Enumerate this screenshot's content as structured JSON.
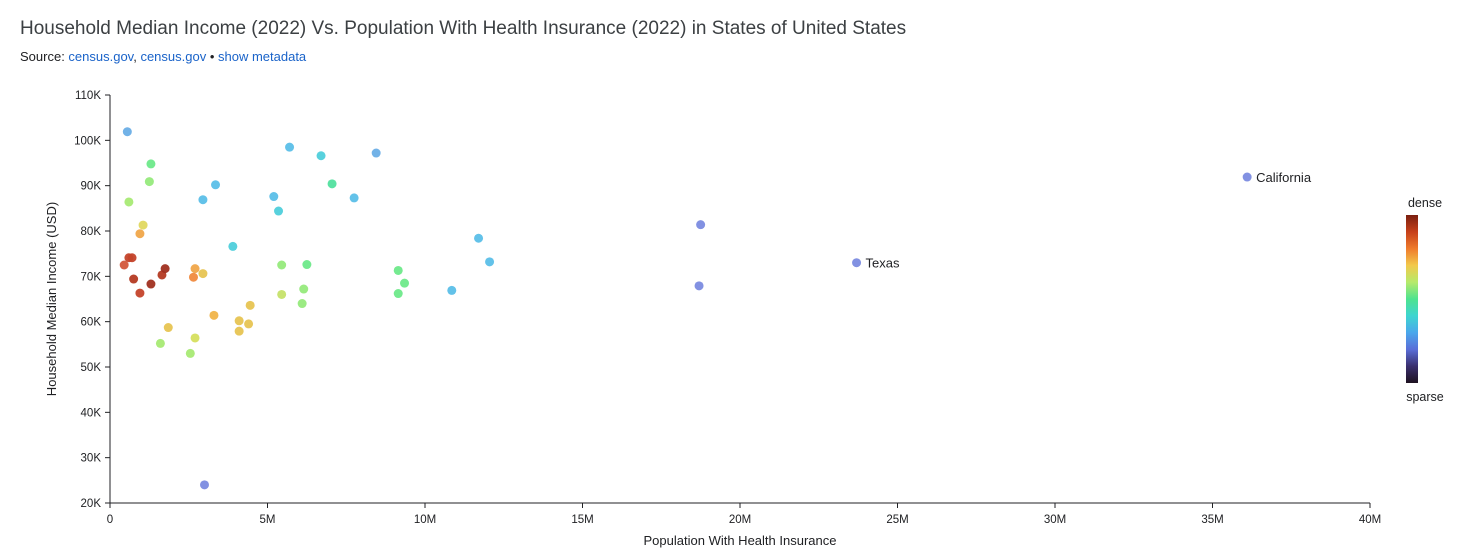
{
  "header": {
    "title": "Household Median Income (2022) Vs. Population With Health Insurance (2022) in States of United States",
    "source_prefix": "Source: ",
    "source_links": [
      "census.gov",
      "census.gov"
    ],
    "separator": ", ",
    "bullet": " • ",
    "metadata_link": "show metadata"
  },
  "chart_data": {
    "type": "scatter",
    "xlabel": "Population With Health Insurance",
    "ylabel": "Household Median Income (USD)",
    "xlim": [
      0,
      40000000
    ],
    "ylim": [
      20000,
      110000
    ],
    "x_ticks": [
      0,
      5000000,
      10000000,
      15000000,
      20000000,
      25000000,
      30000000,
      35000000,
      40000000
    ],
    "x_tick_labels": [
      "0",
      "5M",
      "10M",
      "15M",
      "20M",
      "25M",
      "30M",
      "35M",
      "40M"
    ],
    "y_ticks": [
      20000,
      30000,
      40000,
      50000,
      60000,
      70000,
      80000,
      90000,
      100000,
      110000
    ],
    "y_tick_labels": [
      "20K",
      "30K",
      "40K",
      "50K",
      "60K",
      "70K",
      "80K",
      "90K",
      "100K",
      "110K"
    ],
    "grid": false,
    "legend": {
      "position": "right",
      "top_label": "dense",
      "bottom_label": "sparse",
      "colors": [
        "#7a1f10",
        "#c6401a",
        "#ef7b2c",
        "#f2c94c",
        "#b6ea6b",
        "#4ee38f",
        "#3ed5d0",
        "#4aa7ec",
        "#5a6ed8",
        "#3a2f6e",
        "#1e1220"
      ]
    },
    "points": [
      {
        "x": 36100000,
        "y": 91900,
        "label": "California",
        "color": "#7b8be0"
      },
      {
        "x": 23700000,
        "y": 73000,
        "label": "Texas",
        "color": "#7b8be0"
      },
      {
        "x": 18750000,
        "y": 81400,
        "color": "#7b8be0"
      },
      {
        "x": 18700000,
        "y": 67900,
        "color": "#7b8be0"
      },
      {
        "x": 12050000,
        "y": 73200,
        "color": "#5bbfe8"
      },
      {
        "x": 11700000,
        "y": 78400,
        "color": "#5bbfe8"
      },
      {
        "x": 10850000,
        "y": 66900,
        "color": "#5bbfe8"
      },
      {
        "x": 8450000,
        "y": 97200,
        "color": "#6aaee6"
      },
      {
        "x": 7750000,
        "y": 87300,
        "color": "#5bbfe8"
      },
      {
        "x": 6700000,
        "y": 96600,
        "color": "#4fcfdb"
      },
      {
        "x": 5700000,
        "y": 98500,
        "color": "#5bbfe8"
      },
      {
        "x": 5200000,
        "y": 87600,
        "color": "#5bbfe8"
      },
      {
        "x": 5350000,
        "y": 84400,
        "color": "#4fcfdb"
      },
      {
        "x": 7050000,
        "y": 90400,
        "color": "#52e09f"
      },
      {
        "x": 9150000,
        "y": 71300,
        "color": "#6ee98a"
      },
      {
        "x": 9350000,
        "y": 68500,
        "color": "#6ee98a"
      },
      {
        "x": 9150000,
        "y": 66200,
        "color": "#6ee98a"
      },
      {
        "x": 6250000,
        "y": 72600,
        "color": "#6ee98a"
      },
      {
        "x": 6150000,
        "y": 67200,
        "color": "#96ea7c"
      },
      {
        "x": 6100000,
        "y": 64000,
        "color": "#96ea7c"
      },
      {
        "x": 5450000,
        "y": 72500,
        "color": "#96ea7c"
      },
      {
        "x": 5450000,
        "y": 66000,
        "color": "#c6e26a"
      },
      {
        "x": 3900000,
        "y": 76600,
        "color": "#4fcfdb"
      },
      {
        "x": 3350000,
        "y": 90200,
        "color": "#5bbfe8"
      },
      {
        "x": 2950000,
        "y": 86900,
        "color": "#5bbfe8"
      },
      {
        "x": 3000000,
        "y": 24000,
        "color": "#7b8be0"
      },
      {
        "x": 550000,
        "y": 101900,
        "color": "#6aaee6"
      },
      {
        "x": 1300000,
        "y": 94800,
        "color": "#6ee98a"
      },
      {
        "x": 1250000,
        "y": 90900,
        "color": "#96ea7c"
      },
      {
        "x": 600000,
        "y": 86400,
        "color": "#a8ea74"
      },
      {
        "x": 1050000,
        "y": 81300,
        "color": "#e0d860"
      },
      {
        "x": 950000,
        "y": 79400,
        "color": "#f0a64a"
      },
      {
        "x": 600000,
        "y": 74100,
        "color": "#c4432a"
      },
      {
        "x": 700000,
        "y": 74100,
        "color": "#c4432a"
      },
      {
        "x": 450000,
        "y": 72500,
        "color": "#d3563a"
      },
      {
        "x": 750000,
        "y": 69400,
        "color": "#b43a22"
      },
      {
        "x": 950000,
        "y": 66300,
        "color": "#c4432a"
      },
      {
        "x": 1300000,
        "y": 68300,
        "color": "#a03020"
      },
      {
        "x": 1650000,
        "y": 70300,
        "color": "#b43a22"
      },
      {
        "x": 1750000,
        "y": 71700,
        "color": "#a03020"
      },
      {
        "x": 2700000,
        "y": 71700,
        "color": "#f0a64a"
      },
      {
        "x": 2650000,
        "y": 69800,
        "color": "#f08a3e"
      },
      {
        "x": 2950000,
        "y": 70600,
        "color": "#e7c452"
      },
      {
        "x": 3300000,
        "y": 61400,
        "color": "#f0b44a"
      },
      {
        "x": 4450000,
        "y": 63600,
        "color": "#e7c452"
      },
      {
        "x": 4100000,
        "y": 60200,
        "color": "#e7c452"
      },
      {
        "x": 4400000,
        "y": 59500,
        "color": "#e7c452"
      },
      {
        "x": 4100000,
        "y": 57900,
        "color": "#e7c452"
      },
      {
        "x": 1850000,
        "y": 58700,
        "color": "#e7c452"
      },
      {
        "x": 2700000,
        "y": 56400,
        "color": "#d6df5e"
      },
      {
        "x": 1600000,
        "y": 55200,
        "color": "#a8ea74"
      },
      {
        "x": 2550000,
        "y": 53000,
        "color": "#a8ea74"
      }
    ]
  }
}
